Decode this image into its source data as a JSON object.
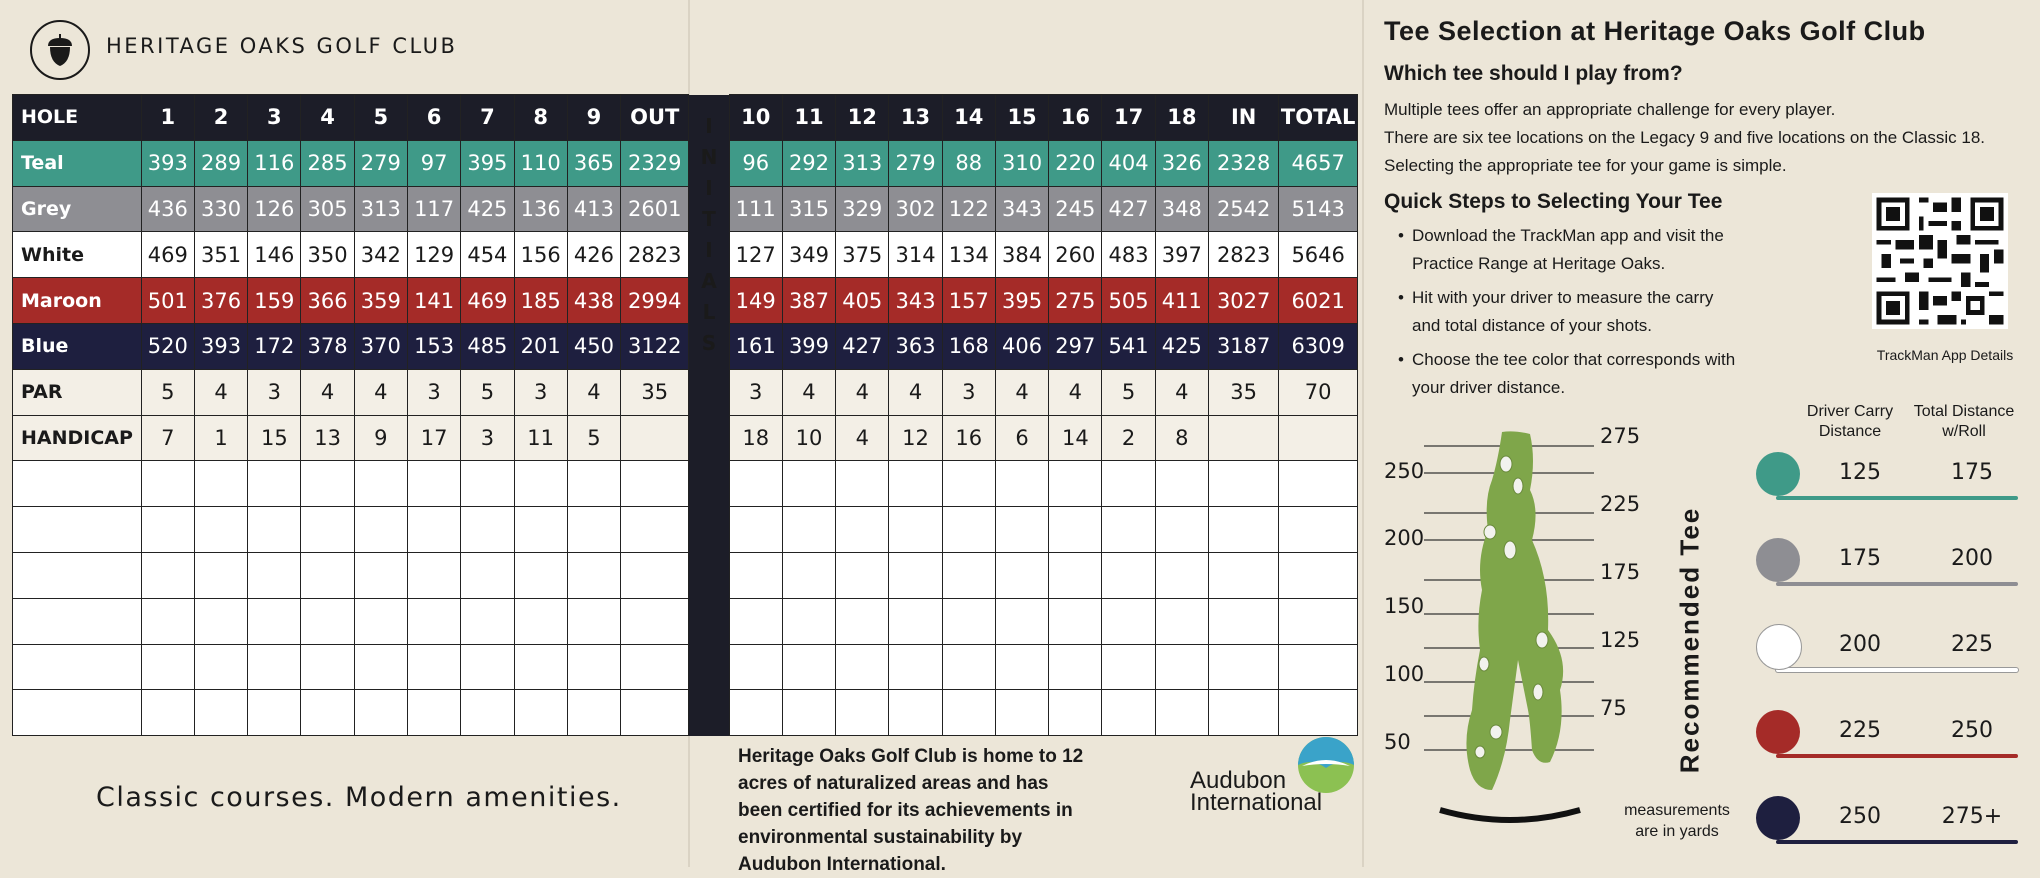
{
  "header": {
    "club_name": "HERITAGE OAKS GOLF CLUB"
  },
  "scorecard": {
    "columns": [
      "HOLE",
      "1",
      "2",
      "3",
      "4",
      "5",
      "6",
      "7",
      "8",
      "9",
      "OUT",
      "10",
      "11",
      "12",
      "13",
      "14",
      "15",
      "16",
      "17",
      "18",
      "IN",
      "TOTAL"
    ],
    "initials_label": [
      "I",
      "N",
      "I",
      "T",
      "I",
      "A",
      "L",
      "S"
    ],
    "rows": [
      {
        "label": "Teal",
        "cells": [
          "393",
          "289",
          "116",
          "285",
          "279",
          "97",
          "395",
          "110",
          "365",
          "2329",
          "96",
          "292",
          "313",
          "279",
          "88",
          "310",
          "220",
          "404",
          "326",
          "2328",
          "4657"
        ]
      },
      {
        "label": "Grey",
        "cells": [
          "436",
          "330",
          "126",
          "305",
          "313",
          "117",
          "425",
          "136",
          "413",
          "2601",
          "111",
          "315",
          "329",
          "302",
          "122",
          "343",
          "245",
          "427",
          "348",
          "2542",
          "5143"
        ]
      },
      {
        "label": "White",
        "cells": [
          "469",
          "351",
          "146",
          "350",
          "342",
          "129",
          "454",
          "156",
          "426",
          "2823",
          "127",
          "349",
          "375",
          "314",
          "134",
          "384",
          "260",
          "483",
          "397",
          "2823",
          "5646"
        ]
      },
      {
        "label": "Maroon",
        "cells": [
          "501",
          "376",
          "159",
          "366",
          "359",
          "141",
          "469",
          "185",
          "438",
          "2994",
          "149",
          "387",
          "405",
          "343",
          "157",
          "395",
          "275",
          "505",
          "411",
          "3027",
          "6021"
        ]
      },
      {
        "label": "Blue",
        "cells": [
          "520",
          "393",
          "172",
          "378",
          "370",
          "153",
          "485",
          "201",
          "450",
          "3122",
          "161",
          "399",
          "427",
          "363",
          "168",
          "406",
          "297",
          "541",
          "425",
          "3187",
          "6309"
        ]
      },
      {
        "label": "PAR",
        "cells": [
          "5",
          "4",
          "3",
          "4",
          "4",
          "3",
          "5",
          "3",
          "4",
          "35",
          "3",
          "4",
          "4",
          "4",
          "3",
          "4",
          "4",
          "5",
          "4",
          "35",
          "70"
        ]
      },
      {
        "label": "HANDICAP",
        "cells": [
          "7",
          "1",
          "15",
          "13",
          "9",
          "17",
          "3",
          "11",
          "5",
          "",
          "18",
          "10",
          "4",
          "12",
          "16",
          "6",
          "14",
          "2",
          "8",
          "",
          ""
        ]
      }
    ],
    "blank_rows": 6
  },
  "footer": {
    "tagline": "Classic courses. Modern amenities.",
    "audubon_statement": "Heritage Oaks Golf Club is home to 12 acres of naturalized areas and has been certified for its achievements in environmental sustainability by Audubon International.",
    "audubon_logo_line1": "Audubon",
    "audubon_logo_line2": "International"
  },
  "tee_panel": {
    "title": "Tee Selection at Heritage Oaks Golf Club",
    "subtitle": "Which tee should I play from?",
    "intro_1": "Multiple tees offer an appropriate challenge for every player.",
    "intro_2": "There are six tee locations on the Legacy 9 and five locations on the Classic 18. Selecting the appropriate tee for your game is simple.",
    "steps_title": "Quick Steps to Selecting Your Tee",
    "steps": [
      "Download the TrackMan app and visit the Practice Range at Heritage Oaks.",
      "Hit with your driver to measure the carry and total distance of your shots.",
      "Choose the tee color that corresponds with your driver distance."
    ],
    "qr_label": "TrackMan App Details",
    "col_carry": "Driver Carry Distance",
    "col_total": "Total Distance w/Roll",
    "recommended_label": "Recommended Tee",
    "measurements_note": "measurements are in yards",
    "tees": [
      {
        "color": "#3f9a88",
        "carry": "125",
        "total": "175"
      },
      {
        "color": "#8e8e93",
        "carry": "175",
        "total": "200"
      },
      {
        "color": "#ffffff",
        "carry": "200",
        "total": "225"
      },
      {
        "color": "#a52b28",
        "carry": "225",
        "total": "250"
      },
      {
        "color": "#1e1f3f",
        "carry": "250",
        "total": "275+"
      }
    ],
    "fairway_left_marks": [
      "250",
      "200",
      "150",
      "100",
      "50"
    ],
    "fairway_right_marks": [
      "275",
      "225",
      "175",
      "125",
      "75"
    ]
  }
}
